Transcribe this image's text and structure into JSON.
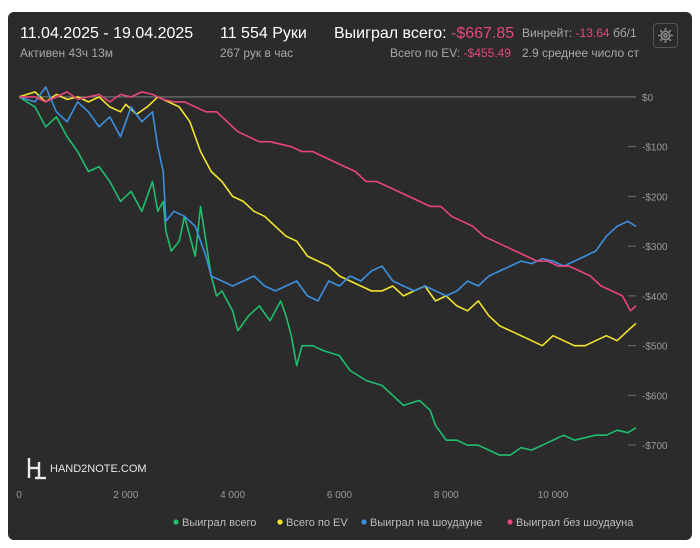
{
  "header": {
    "date_range": "11.04.2025 - 19.04.2025",
    "active": "Активен 43ч 13м",
    "hands": "11 554 Руки",
    "hands_per_hour": "267 рук в час",
    "won_total_label": "Выиграл всего:",
    "won_total_value": "-$667.85",
    "ev_label": "Всего по EV:",
    "ev_value": "-$455.49",
    "winrate_label": "Винрейт:",
    "winrate_value": "-13.64",
    "winrate_unit": "бб/1",
    "avg_label": "2.9 среднее число ст"
  },
  "watermark": "HAND2NOTE.COM",
  "icons": {
    "settings": "gear-icon",
    "logo": "hand2note-logo-icon"
  },
  "colors": {
    "background": "#2b2b2b",
    "won_total": "#1fbf6e",
    "ev_total": "#f2e52e",
    "showdown": "#3d8fe0",
    "no_showdown": "#e8457a",
    "negative_text": "#e8457a"
  },
  "chart_data": {
    "type": "line",
    "xlabel": "",
    "ylabel": "",
    "xlim": [
      0,
      11554
    ],
    "ylim": [
      -760,
      30
    ],
    "x_ticks": [
      0,
      2000,
      4000,
      6000,
      8000,
      10000
    ],
    "x_tick_labels": [
      "0",
      "2 000",
      "4 000",
      "6 000",
      "8 000",
      "10 000"
    ],
    "y_ticks": [
      0,
      -100,
      -200,
      -300,
      -400,
      -500,
      -600,
      -700
    ],
    "y_tick_labels": [
      "$0",
      "-$100",
      "-$200",
      "-$300",
      "-$400",
      "-$500",
      "-$600",
      "-$700"
    ],
    "grid": false,
    "legend": "bottom",
    "series": [
      {
        "name": "Выиграл всего",
        "color": "#1fbf6e",
        "x": [
          0,
          300,
          500,
          700,
          900,
          1100,
          1300,
          1500,
          1700,
          1900,
          2100,
          2300,
          2500,
          2600,
          2700,
          2750,
          2850,
          3000,
          3100,
          3300,
          3400,
          3500,
          3600,
          3700,
          3800,
          4000,
          4100,
          4300,
          4500,
          4700,
          4900,
          5000,
          5100,
          5200,
          5300,
          5500,
          5700,
          6000,
          6200,
          6500,
          6800,
          7000,
          7200,
          7500,
          7700,
          7800,
          8000,
          8200,
          8400,
          8600,
          8800,
          9000,
          9200,
          9400,
          9600,
          9800,
          10000,
          10200,
          10400,
          10600,
          10800,
          11000,
          11200,
          11400,
          11554
        ],
        "y": [
          0,
          -20,
          -60,
          -40,
          -80,
          -110,
          -150,
          -140,
          -170,
          -210,
          -190,
          -230,
          -170,
          -230,
          -210,
          -270,
          -310,
          -290,
          -240,
          -320,
          -220,
          -290,
          -360,
          -400,
          -390,
          -430,
          -470,
          -440,
          -420,
          -450,
          -410,
          -440,
          -480,
          -540,
          -500,
          -500,
          -510,
          -520,
          -550,
          -570,
          -580,
          -600,
          -620,
          -610,
          -630,
          -660,
          -690,
          -690,
          -700,
          -700,
          -710,
          -720,
          -720,
          -705,
          -710,
          -700,
          -690,
          -680,
          -690,
          -685,
          -680,
          -680,
          -670,
          -675,
          -665
        ]
      },
      {
        "name": "Всего по EV",
        "color": "#f2e52e",
        "x": [
          0,
          300,
          500,
          700,
          900,
          1100,
          1300,
          1500,
          1700,
          1900,
          2000,
          2200,
          2400,
          2600,
          2800,
          3000,
          3200,
          3400,
          3600,
          3800,
          4000,
          4200,
          4400,
          4600,
          4800,
          5000,
          5200,
          5400,
          5600,
          5800,
          6000,
          6200,
          6400,
          6600,
          6800,
          7000,
          7200,
          7400,
          7600,
          7800,
          8000,
          8200,
          8400,
          8600,
          8800,
          9000,
          9200,
          9400,
          9600,
          9800,
          10000,
          10200,
          10400,
          10600,
          10800,
          11000,
          11200,
          11400,
          11554
        ],
        "y": [
          0,
          10,
          -10,
          5,
          -5,
          0,
          -10,
          0,
          -20,
          -30,
          -15,
          -35,
          -20,
          0,
          -10,
          -20,
          -50,
          -110,
          -150,
          -170,
          -200,
          -210,
          -230,
          -240,
          -260,
          -280,
          -290,
          -320,
          -330,
          -340,
          -360,
          -370,
          -380,
          -390,
          -390,
          -380,
          -400,
          -390,
          -380,
          -410,
          -400,
          -420,
          -430,
          -410,
          -440,
          -460,
          -470,
          -480,
          -490,
          -500,
          -480,
          -490,
          -500,
          -500,
          -490,
          -480,
          -490,
          -470,
          -455
        ]
      },
      {
        "name": "Выиграл на шоудауне",
        "color": "#3d8fe0",
        "x": [
          0,
          300,
          500,
          700,
          900,
          1100,
          1300,
          1500,
          1700,
          1900,
          2100,
          2300,
          2500,
          2600,
          2700,
          2750,
          2900,
          3100,
          3300,
          3400,
          3500,
          3600,
          3800,
          4000,
          4200,
          4400,
          4600,
          4800,
          5000,
          5200,
          5400,
          5600,
          5800,
          6000,
          6200,
          6400,
          6600,
          6800,
          7000,
          7200,
          7400,
          7600,
          7800,
          8000,
          8200,
          8400,
          8600,
          8800,
          9000,
          9200,
          9400,
          9600,
          9800,
          10000,
          10200,
          10400,
          10600,
          10800,
          11000,
          11200,
          11400,
          11554
        ],
        "y": [
          0,
          -10,
          20,
          -30,
          -50,
          -10,
          -30,
          -60,
          -40,
          -80,
          -20,
          -50,
          -30,
          -100,
          -150,
          -250,
          -230,
          -240,
          -260,
          -290,
          -320,
          -360,
          -370,
          -380,
          -370,
          -360,
          -380,
          -390,
          -380,
          -370,
          -400,
          -410,
          -370,
          -380,
          -360,
          -370,
          -350,
          -340,
          -370,
          -380,
          -390,
          -380,
          -390,
          -400,
          -390,
          -370,
          -380,
          -360,
          -350,
          -340,
          -330,
          -335,
          -325,
          -330,
          -340,
          -330,
          -320,
          -310,
          -280,
          -260,
          -250,
          -260
        ]
      },
      {
        "name": "Выиграл без шоудауна",
        "color": "#e8457a",
        "x": [
          0,
          300,
          500,
          700,
          900,
          1100,
          1300,
          1500,
          1700,
          1900,
          2100,
          2300,
          2500,
          2700,
          2900,
          3100,
          3300,
          3500,
          3700,
          3900,
          4100,
          4300,
          4500,
          4700,
          4900,
          5100,
          5300,
          5500,
          5700,
          5900,
          6100,
          6300,
          6500,
          6700,
          6900,
          7100,
          7300,
          7500,
          7700,
          7900,
          8100,
          8300,
          8500,
          8700,
          8900,
          9100,
          9300,
          9500,
          9700,
          9900,
          10100,
          10300,
          10500,
          10700,
          10900,
          11100,
          11300,
          11450,
          11554
        ],
        "y": [
          0,
          0,
          -10,
          0,
          10,
          -5,
          0,
          5,
          -10,
          5,
          0,
          10,
          5,
          -5,
          -10,
          -10,
          -20,
          -30,
          -30,
          -50,
          -70,
          -80,
          -90,
          -90,
          -95,
          -100,
          -110,
          -110,
          -120,
          -130,
          -140,
          -150,
          -170,
          -170,
          -180,
          -190,
          -200,
          -210,
          -220,
          -220,
          -240,
          -250,
          -260,
          -280,
          -290,
          -300,
          -310,
          -320,
          -330,
          -330,
          -340,
          -340,
          -350,
          -360,
          -380,
          -390,
          -400,
          -430,
          -420
        ]
      }
    ]
  }
}
